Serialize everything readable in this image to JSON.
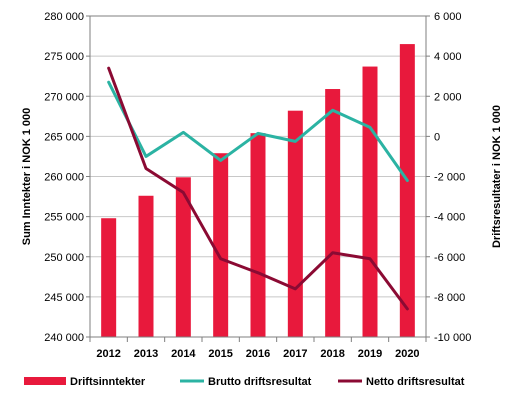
{
  "chart_data": {
    "type": "bar+line",
    "categories": [
      "2012",
      "2013",
      "2014",
      "2015",
      "2016",
      "2017",
      "2018",
      "2019",
      "2020"
    ],
    "left_axis": {
      "label": "Sum Inntekter i NOK 1 000",
      "ylim": [
        240000,
        280000
      ],
      "ticks": [
        240000,
        245000,
        250000,
        255000,
        260000,
        265000,
        270000,
        275000,
        280000
      ],
      "tick_labels": [
        "240 000",
        "245 000",
        "250 000",
        "255 000",
        "260 000",
        "265 000",
        "270 000",
        "275 000",
        "280 000"
      ]
    },
    "right_axis": {
      "label": "Driftsresultater i NOK 1 000",
      "ylim": [
        -10000,
        6000
      ],
      "ticks": [
        -10000,
        -8000,
        -6000,
        -4000,
        -2000,
        0,
        2000,
        4000,
        6000
      ],
      "tick_labels": [
        "-10 000",
        "-8 000",
        "-6 000",
        "-4 000",
        "-2 000",
        "0",
        "2 000",
        "4 000",
        "6 000"
      ]
    },
    "series": [
      {
        "name": "Driftsinntekter",
        "kind": "bar",
        "axis": "left",
        "color": "#E8193C",
        "values": [
          254800,
          257600,
          259900,
          262900,
          265400,
          268200,
          270900,
          273700,
          276500
        ]
      },
      {
        "name": "Brutto driftsresultat",
        "kind": "line",
        "axis": "right",
        "color": "#2BB3A3",
        "values": [
          2700,
          -1000,
          200,
          -1200,
          150,
          -250,
          1300,
          450,
          -2200
        ]
      },
      {
        "name": "Netto driftsresultat",
        "kind": "line",
        "axis": "right",
        "color": "#8B0A33",
        "values": [
          3400,
          -1600,
          -2800,
          -6100,
          -6800,
          -7600,
          -5800,
          -6100,
          -8600
        ]
      }
    ],
    "grid": "horizontal",
    "legend_position": "bottom"
  }
}
